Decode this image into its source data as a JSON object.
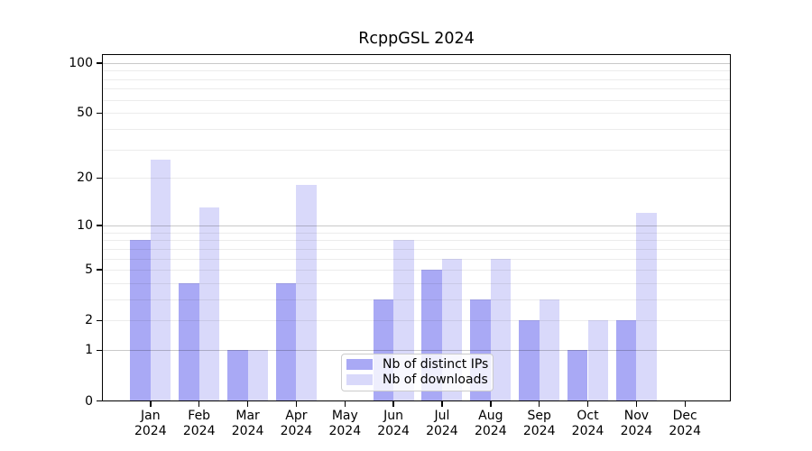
{
  "title": "RcppGSL 2024",
  "chart_data": {
    "type": "bar",
    "categories": [
      "Jan",
      "Feb",
      "Mar",
      "Apr",
      "May",
      "Jun",
      "Jul",
      "Aug",
      "Sep",
      "Oct",
      "Nov",
      "Dec"
    ],
    "category_year": "2024",
    "series": [
      {
        "name": "Nb of distinct IPs",
        "color": "#a9a9f5",
        "values": [
          8,
          4,
          1,
          4,
          0,
          3,
          5,
          3,
          2,
          1,
          2,
          0
        ]
      },
      {
        "name": "Nb of downloads",
        "color": "#d9d9fa",
        "values": [
          26,
          13,
          1,
          18,
          0,
          8,
          6,
          6,
          3,
          2,
          12,
          0
        ]
      }
    ],
    "xlabel": "",
    "ylabel": "",
    "y_axis": {
      "scale": "log1p",
      "tick_values": [
        0,
        1,
        2,
        5,
        10,
        20,
        50,
        100
      ],
      "tick_labels": [
        "0",
        "1",
        "2",
        "5",
        "10",
        "20",
        "50",
        "100"
      ],
      "major_gridlines": [
        1,
        10,
        100
      ],
      "minor_gridlines": [
        2,
        3,
        4,
        5,
        6,
        7,
        8,
        9,
        20,
        30,
        40,
        50,
        60,
        70,
        80,
        90
      ],
      "range_max": 113
    },
    "grid": true,
    "legend_position": "lower center"
  },
  "colors": {
    "background": "#ffffff",
    "text": "#000000",
    "axis_spine": "#000000",
    "major_grid": "#c9c9c9",
    "minor_grid": "#ececec",
    "legend_border": "#cccccc",
    "legend_background": "rgba(255,255,255,0.8)"
  }
}
